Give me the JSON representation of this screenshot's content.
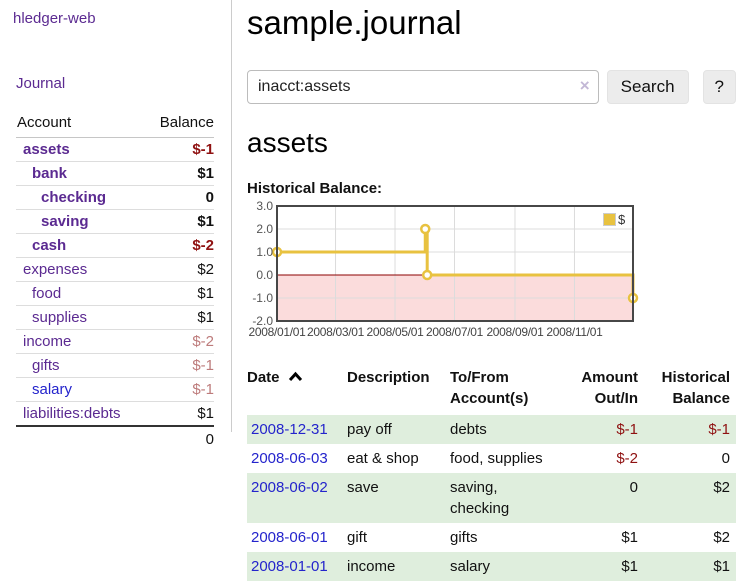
{
  "app": {
    "brand": "hledger-web"
  },
  "colors": {
    "link_purple": "#5b2a91",
    "link_blue": "#2424cc",
    "negative_strong": "#8f1111",
    "negative_soft": "#bd7b7b",
    "row_green": "#dfeedd",
    "series_gold": "#e8c240",
    "negative_region": "#fbdcdc",
    "zero_line": "#8b0000"
  },
  "sidebar": {
    "journal_link": "Journal",
    "accounts_header": {
      "account": "Account",
      "balance": "Balance"
    },
    "accounts": [
      {
        "name": "assets",
        "balance": "$-1",
        "indent": 1,
        "bold": true,
        "amount_style": "neg-strong",
        "link_color": "purple"
      },
      {
        "name": "bank",
        "balance": "$1",
        "indent": 2,
        "bold": true,
        "amount_style": "pos",
        "link_color": "purple"
      },
      {
        "name": "checking",
        "balance": "0",
        "indent": 3,
        "bold": true,
        "amount_style": "pos",
        "link_color": "purple"
      },
      {
        "name": "saving",
        "balance": "$1",
        "indent": 3,
        "bold": true,
        "amount_style": "pos",
        "link_color": "purple"
      },
      {
        "name": "cash",
        "balance": "$-2",
        "indent": 2,
        "bold": true,
        "amount_style": "neg-strong",
        "link_color": "purple"
      },
      {
        "name": "expenses",
        "balance": "$2",
        "indent": 1,
        "bold": false,
        "amount_style": "pos",
        "link_color": "purple"
      },
      {
        "name": "food",
        "balance": "$1",
        "indent": 2,
        "bold": false,
        "amount_style": "pos",
        "link_color": "purple"
      },
      {
        "name": "supplies",
        "balance": "$1",
        "indent": 2,
        "bold": false,
        "amount_style": "pos",
        "link_color": "purple"
      },
      {
        "name": "income",
        "balance": "$-2",
        "indent": 1,
        "bold": false,
        "amount_style": "neg-soft",
        "link_color": "purple"
      },
      {
        "name": "gifts",
        "balance": "$-1",
        "indent": 2,
        "bold": false,
        "amount_style": "neg-soft",
        "link_color": "purple"
      },
      {
        "name": "salary",
        "balance": "$-1",
        "indent": 2,
        "bold": false,
        "amount_style": "neg-soft",
        "link_color": "blue"
      },
      {
        "name": "liabilities:debts",
        "balance": "$1",
        "indent": 1,
        "bold": false,
        "amount_style": "pos",
        "link_color": "purple"
      }
    ],
    "total": "0"
  },
  "main": {
    "title": "sample.journal",
    "search": {
      "value": "inacct:assets",
      "clear": "×",
      "search_button": "Search",
      "help_button": "?"
    },
    "heading": "assets",
    "section_label": "Historical Balance:"
  },
  "chart_data": {
    "type": "line",
    "step": true,
    "title": "Historical Balance",
    "series": [
      {
        "name": "$",
        "color": "#e8c240",
        "points": [
          [
            "2008-01-01",
            1
          ],
          [
            "2008-06-01",
            2
          ],
          [
            "2008-06-03",
            0
          ],
          [
            "2008-12-31",
            -1
          ]
        ]
      }
    ],
    "xlim": [
      "2008-01-01",
      "2008-12-31"
    ],
    "ylim": [
      -2,
      3
    ],
    "yticks": [
      "3.0",
      "2.0",
      "1.0",
      "0.0",
      "-1.0",
      "-2.0"
    ],
    "xticks": [
      "2008/01/01",
      "2008/03/01",
      "2008/05/01",
      "2008/07/01",
      "2008/09/01",
      "2008/11/01"
    ],
    "legend": "$",
    "legend_position": "top-right",
    "grid": true,
    "negative_fill": "#fbdcdc",
    "zero_line_color": "#8b0000"
  },
  "register_table": {
    "headers": [
      {
        "line1": "Date",
        "line2": "",
        "align": "left",
        "sortable": true,
        "width": 100
      },
      {
        "line1": "Description",
        "line2": "",
        "align": "left",
        "sortable": false,
        "width": 103
      },
      {
        "line1": "To/From",
        "line2": "Account(s)",
        "align": "left",
        "sortable": false,
        "width": 112
      },
      {
        "line1": "Amount",
        "line2": "Out/In",
        "align": "right",
        "sortable": false,
        "width": 82
      },
      {
        "line1": "Historical",
        "line2": "Balance",
        "align": "right",
        "sortable": false,
        "width": 92
      }
    ],
    "rows": [
      {
        "date": "2008-12-31",
        "description": "pay off",
        "accounts": "debts",
        "amount": "$-1",
        "amount_negative": true,
        "balance": "$-1",
        "balance_negative": true
      },
      {
        "date": "2008-06-03",
        "description": "eat & shop",
        "accounts": "food, supplies",
        "amount": "$-2",
        "amount_negative": true,
        "balance": "0",
        "balance_negative": false
      },
      {
        "date": "2008-06-02",
        "description": "save",
        "accounts": "saving, checking",
        "amount": "0",
        "amount_negative": false,
        "balance": "$2",
        "balance_negative": false
      },
      {
        "date": "2008-06-01",
        "description": "gift",
        "accounts": "gifts",
        "amount": "$1",
        "amount_negative": false,
        "balance": "$2",
        "balance_negative": false
      },
      {
        "date": "2008-01-01",
        "description": "income",
        "accounts": "salary",
        "amount": "$1",
        "amount_negative": false,
        "balance": "$1",
        "balance_negative": false
      }
    ]
  }
}
